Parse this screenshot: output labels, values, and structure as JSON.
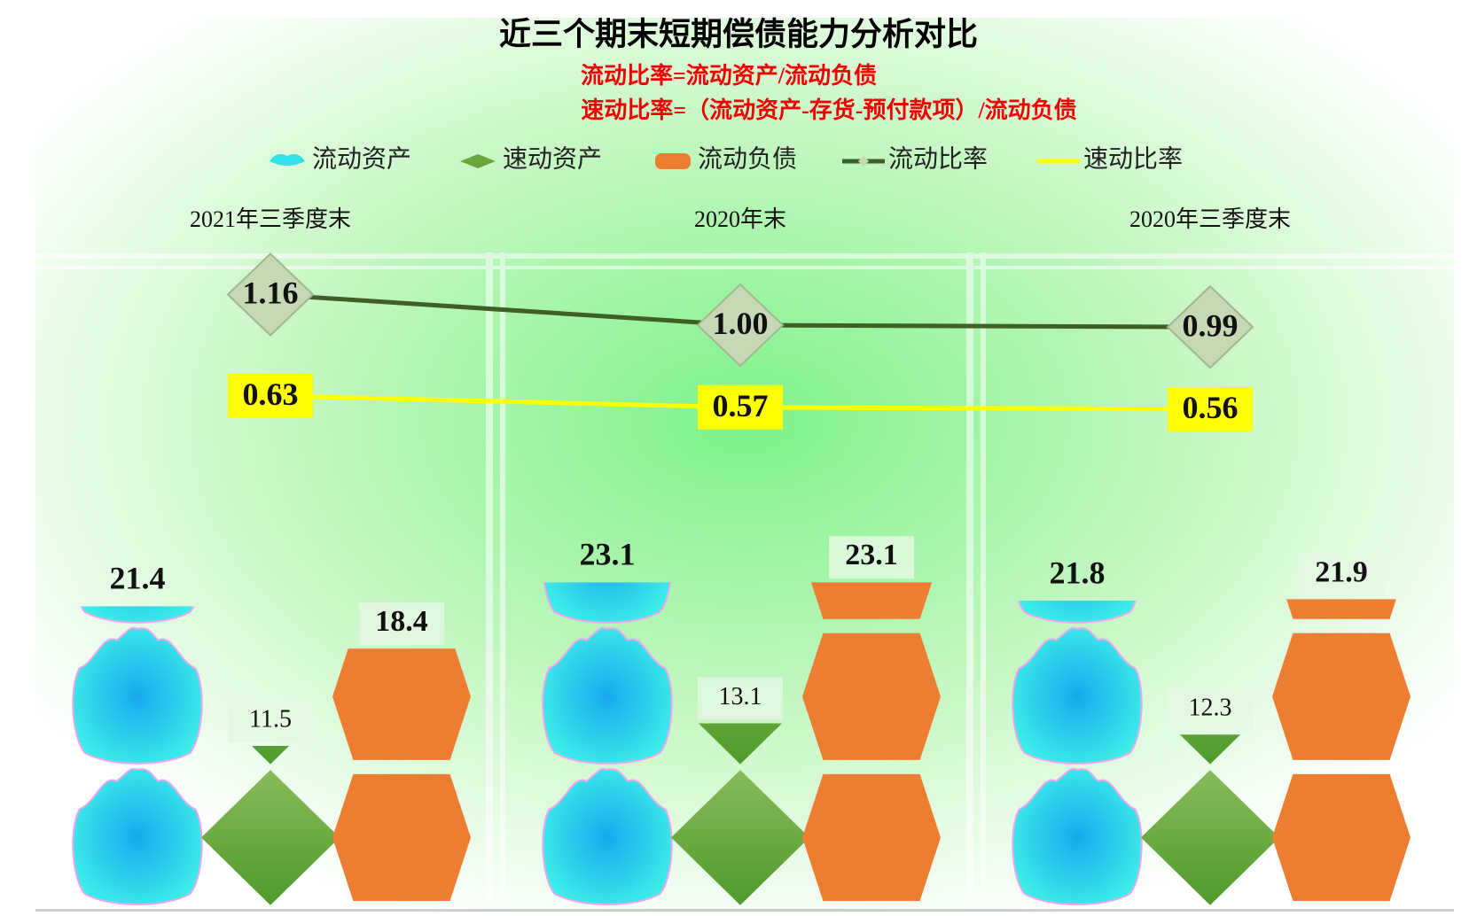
{
  "chart_data": {
    "type": "bar",
    "title": "近三个期末短期偿债能力分析对比",
    "subtitle": [
      "流动比率=流动资产/流动负债",
      "速动比率=（流动资产-存货-预付款项）/流动负债"
    ],
    "categories": [
      "2021年三季度末",
      "2020年末",
      "2020年三季度末"
    ],
    "series": [
      {
        "name": "流动资产",
        "type": "bar",
        "color": "#33e0e8",
        "values": [
          21.4,
          23.1,
          21.8
        ]
      },
      {
        "name": "速动资产",
        "type": "bar",
        "color": "#6aa53c",
        "values": [
          11.5,
          13.1,
          12.3
        ]
      },
      {
        "name": "流动负债",
        "type": "bar",
        "color": "#ed7d31",
        "values": [
          18.4,
          23.1,
          21.9
        ]
      },
      {
        "name": "流动比率",
        "type": "line",
        "axis": "y2",
        "color": "#3f5f27",
        "values": [
          1.16,
          1.0,
          0.99
        ],
        "value_labels": [
          "1.16",
          "1.00",
          "0.99"
        ]
      },
      {
        "name": "速动比率",
        "type": "line",
        "axis": "y2",
        "color": "#ffff00",
        "values": [
          0.63,
          0.57,
          0.56
        ],
        "value_labels": [
          "0.63",
          "0.57",
          "0.56"
        ]
      }
    ],
    "ylim": [
      0,
      46.5
    ],
    "y2lim": [
      -2.05,
      1.38
    ],
    "legend": "top"
  }
}
